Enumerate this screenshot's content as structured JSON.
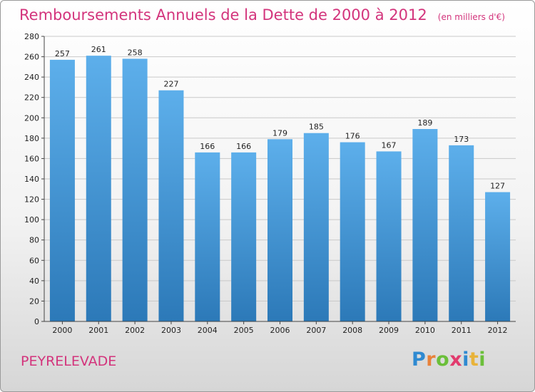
{
  "title": "Remboursements Annuels de la Dette de 2000 à 2012",
  "subtitle": "(en milliers d'€)",
  "commune": "PEYRELEVADE",
  "logo": {
    "letters": [
      "P",
      "r",
      "o",
      "x",
      "i",
      "t",
      "i"
    ],
    "colors": [
      "#2f8ad1",
      "#e8823a",
      "#6bbf3a",
      "#e23b6e",
      "#2f8ad1",
      "#e8b33a",
      "#6bbf3a"
    ]
  },
  "colors": {
    "bar_top": "#5dafeb",
    "bar_bottom": "#2c79b8",
    "grid": "#c9c9c9",
    "axis": "#444444"
  },
  "chart_data": {
    "type": "bar",
    "title": "Remboursements Annuels de la Dette de 2000 à 2012",
    "unit": "(en milliers d'€)",
    "categories": [
      "2000",
      "2001",
      "2002",
      "2003",
      "2004",
      "2005",
      "2006",
      "2007",
      "2008",
      "2009",
      "2010",
      "2011",
      "2012"
    ],
    "values": [
      257,
      261,
      258,
      227,
      166,
      166,
      179,
      185,
      176,
      167,
      189,
      173,
      127
    ],
    "ylim": [
      0,
      280
    ],
    "yticks": [
      0,
      20,
      40,
      60,
      80,
      100,
      120,
      140,
      160,
      180,
      200,
      220,
      240,
      260,
      280
    ],
    "grid": true,
    "xlabel": "",
    "ylabel": ""
  }
}
